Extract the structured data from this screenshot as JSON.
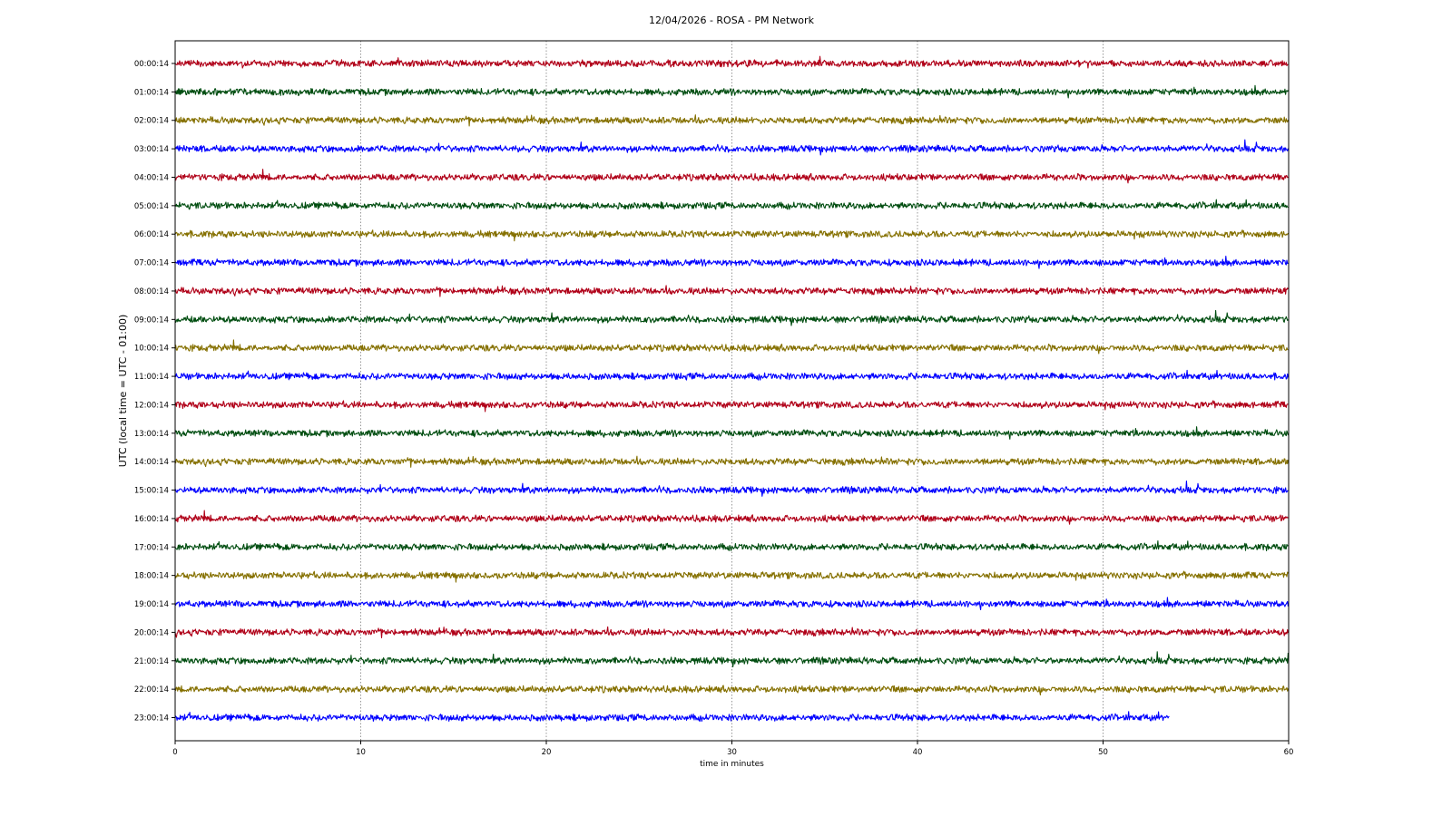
{
  "chart_data": {
    "type": "line",
    "title": "12/04/2026 - ROSA - PM Network",
    "xlabel": "time in minutes",
    "ylabel": "UTC (local time = UTC - 01:00)",
    "xlim": [
      0,
      60
    ],
    "xticks": [
      0,
      10,
      20,
      30,
      40,
      50,
      60
    ],
    "grid": "vertical dotted lines at x ticks",
    "color_cycle": [
      "#b00018",
      "#004d10",
      "#857000",
      "#0000ff"
    ],
    "series": [
      {
        "name": "00:00:14",
        "color": "#b00018",
        "x_end": 60
      },
      {
        "name": "01:00:14",
        "color": "#004d10",
        "x_end": 60
      },
      {
        "name": "02:00:14",
        "color": "#857000",
        "x_end": 60
      },
      {
        "name": "03:00:14",
        "color": "#0000ff",
        "x_end": 60
      },
      {
        "name": "04:00:14",
        "color": "#b00018",
        "x_end": 60
      },
      {
        "name": "05:00:14",
        "color": "#004d10",
        "x_end": 60
      },
      {
        "name": "06:00:14",
        "color": "#857000",
        "x_end": 60
      },
      {
        "name": "07:00:14",
        "color": "#0000ff",
        "x_end": 60
      },
      {
        "name": "08:00:14",
        "color": "#b00018",
        "x_end": 60
      },
      {
        "name": "09:00:14",
        "color": "#004d10",
        "x_end": 60
      },
      {
        "name": "10:00:14",
        "color": "#857000",
        "x_end": 60
      },
      {
        "name": "11:00:14",
        "color": "#0000ff",
        "x_end": 60
      },
      {
        "name": "12:00:14",
        "color": "#b00018",
        "x_end": 60
      },
      {
        "name": "13:00:14",
        "color": "#004d10",
        "x_end": 60
      },
      {
        "name": "14:00:14",
        "color": "#857000",
        "x_end": 60
      },
      {
        "name": "15:00:14",
        "color": "#0000ff",
        "x_end": 60
      },
      {
        "name": "16:00:14",
        "color": "#b00018",
        "x_end": 60
      },
      {
        "name": "17:00:14",
        "color": "#004d10",
        "x_end": 60
      },
      {
        "name": "18:00:14",
        "color": "#857000",
        "x_end": 60
      },
      {
        "name": "19:00:14",
        "color": "#0000ff",
        "x_end": 60
      },
      {
        "name": "20:00:14",
        "color": "#b00018",
        "x_end": 60
      },
      {
        "name": "21:00:14",
        "color": "#004d10",
        "x_end": 60
      },
      {
        "name": "22:00:14",
        "color": "#857000",
        "x_end": 60
      },
      {
        "name": "23:00:14",
        "color": "#0000ff",
        "x_end": 53.6
      }
    ]
  }
}
